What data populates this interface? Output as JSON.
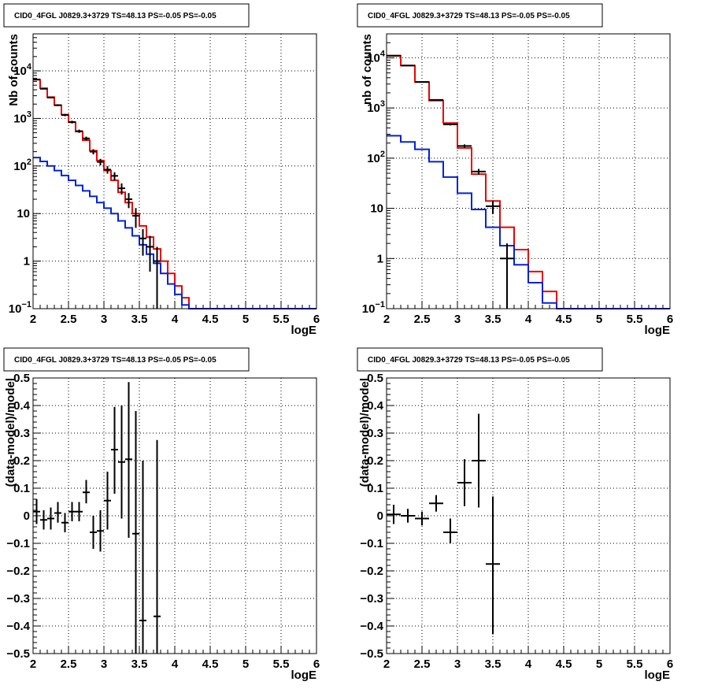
{
  "page_title": "CID0_4FGL J0829.3+3729 TS=48.13 PS=-0.05 PS=-0.05",
  "colors": {
    "data": "#000000",
    "total_model": "#ee0000",
    "component_model": "#0022dd",
    "grid": "#000000"
  },
  "chart_data": [
    {
      "panel": "top-left",
      "type": "line",
      "title": "CID0_4FGL J0829.3+3729 TS=48.13 PS=-0.05 PS=-0.05",
      "xlabel": "logE",
      "ylabel": "Nb of counts",
      "log_y": true,
      "xlim": [
        2,
        6
      ],
      "ylim": [
        0.1,
        60000
      ],
      "grid": true,
      "x_ticks": [
        "2",
        "2.5",
        "3",
        "3.5",
        "4",
        "4.5",
        "5",
        "5.5",
        "6"
      ],
      "y_ticks": [
        {
          "v": 0.1,
          "base": "10",
          "exp": "−1"
        },
        {
          "v": 1,
          "label": "1"
        },
        {
          "v": 10,
          "label": "10"
        },
        {
          "v": 100,
          "base": "10",
          "exp": "2"
        },
        {
          "v": 1000,
          "base": "10",
          "exp": "3"
        },
        {
          "v": 10000,
          "base": "10",
          "exp": "4"
        }
      ],
      "bin_edges": [
        2.0,
        2.1,
        2.2,
        2.3,
        2.4,
        2.5,
        2.6,
        2.7,
        2.8,
        2.9,
        3.0,
        3.1,
        3.2,
        3.3,
        3.4,
        3.5,
        3.6,
        3.7,
        3.8,
        3.9,
        4.0,
        4.1,
        4.2,
        4.3,
        4.4,
        4.5,
        4.6,
        4.7,
        4.8,
        4.9,
        5.0,
        5.1,
        5.2,
        5.3,
        5.4,
        5.5,
        5.6,
        5.7,
        5.8,
        5.9,
        6.0
      ],
      "series": [
        {
          "role": "total_model",
          "values": [
            6500,
            4300,
            2800,
            1900,
            1200,
            830,
            530,
            350,
            210,
            130,
            80,
            50,
            28,
            17,
            10,
            5.5,
            3.2,
            1.8,
            1.0,
            0.55,
            0.3,
            0.17,
            0.1,
            0.1,
            0.1,
            0.1,
            0.1,
            0.1,
            0.1,
            0.1,
            0.1,
            0.1,
            0.1,
            0.1,
            0.1,
            0.1,
            0.1,
            0.1,
            0.1,
            0.1
          ]
        },
        {
          "role": "component_model",
          "values": [
            150,
            125,
            100,
            80,
            63,
            50,
            39,
            30,
            23,
            17,
            13,
            10,
            7,
            5,
            3.4,
            2.2,
            1.4,
            0.9,
            0.55,
            0.33,
            0.2,
            0.12,
            0.1,
            0.1,
            0.1,
            0.1,
            0.1,
            0.1,
            0.1,
            0.1,
            0.1,
            0.1,
            0.1,
            0.1,
            0.1,
            0.1,
            0.1,
            0.1,
            0.1,
            0.1
          ]
        },
        {
          "role": "data",
          "points": [
            {
              "x": 2.05,
              "y": 6600,
              "lo": 6450,
              "hi": 6750
            },
            {
              "x": 2.15,
              "y": 4200,
              "lo": 4080,
              "hi": 4320
            },
            {
              "x": 2.25,
              "y": 2750,
              "lo": 2650,
              "hi": 2850
            },
            {
              "x": 2.35,
              "y": 1900,
              "lo": 1815,
              "hi": 1985
            },
            {
              "x": 2.45,
              "y": 1180,
              "lo": 1115,
              "hi": 1245
            },
            {
              "x": 2.55,
              "y": 840,
              "lo": 785,
              "hi": 895
            },
            {
              "x": 2.65,
              "y": 540,
              "lo": 497,
              "hi": 583
            },
            {
              "x": 2.75,
              "y": 380,
              "lo": 346,
              "hi": 414
            },
            {
              "x": 2.85,
              "y": 200,
              "lo": 175,
              "hi": 225
            },
            {
              "x": 2.95,
              "y": 122,
              "lo": 103,
              "hi": 141
            },
            {
              "x": 3.05,
              "y": 84,
              "lo": 69,
              "hi": 99
            },
            {
              "x": 3.15,
              "y": 62,
              "lo": 50,
              "hi": 74
            },
            {
              "x": 3.25,
              "y": 34,
              "lo": 25,
              "hi": 43
            },
            {
              "x": 3.35,
              "y": 20,
              "lo": 13,
              "hi": 27
            },
            {
              "x": 3.45,
              "y": 9,
              "lo": 5,
              "hi": 13
            },
            {
              "x": 3.55,
              "y": 3,
              "lo": 1.3,
              "hi": 4.7
            },
            {
              "x": 3.65,
              "y": 2,
              "lo": 0.6,
              "hi": 3.4
            },
            {
              "x": 3.75,
              "y": 1,
              "lo": 0.1,
              "hi": 2.0
            }
          ]
        }
      ]
    },
    {
      "panel": "top-right",
      "type": "line",
      "title": "CID0_4FGL J0829.3+3729 TS=48.13 PS=-0.05 PS=-0.05",
      "xlabel": "logE",
      "ylabel": "nb of counts",
      "log_y": true,
      "xlim": [
        2,
        6
      ],
      "ylim": [
        0.1,
        30000
      ],
      "grid": true,
      "x_ticks": [
        "2",
        "2.5",
        "3",
        "3.5",
        "4",
        "4.5",
        "5",
        "5.5",
        "6"
      ],
      "y_ticks": [
        {
          "v": 0.1,
          "base": "10",
          "exp": "−1"
        },
        {
          "v": 1,
          "label": "1"
        },
        {
          "v": 10,
          "label": "10"
        },
        {
          "v": 100,
          "base": "10",
          "exp": "2"
        },
        {
          "v": 1000,
          "base": "10",
          "exp": "3"
        },
        {
          "v": 10000,
          "base": "10",
          "exp": "4"
        }
      ],
      "bin_edges": [
        2.0,
        2.2,
        2.4,
        2.6,
        2.8,
        3.0,
        3.2,
        3.4,
        3.6,
        3.8,
        4.0,
        4.2,
        4.4,
        4.6,
        4.8,
        5.0,
        5.2,
        5.4,
        5.6,
        5.8,
        6.0
      ],
      "series": [
        {
          "role": "total_model",
          "values": [
            11000,
            7000,
            3300,
            1400,
            500,
            160,
            48,
            14,
            4.2,
            1.5,
            0.55,
            0.22,
            0.1,
            0.1,
            0.1,
            0.1,
            0.1,
            0.1,
            0.1,
            0.1
          ]
        },
        {
          "role": "component_model",
          "values": [
            280,
            210,
            150,
            85,
            42,
            20,
            9.5,
            4.2,
            1.8,
            0.75,
            0.33,
            0.13,
            0.1,
            0.1,
            0.1,
            0.1,
            0.1,
            0.1,
            0.1,
            0.1
          ]
        },
        {
          "role": "data",
          "points": [
            {
              "x": 2.1,
              "y": 11000,
              "lo": 10900,
              "hi": 11100
            },
            {
              "x": 2.3,
              "y": 7000,
              "lo": 6920,
              "hi": 7080
            },
            {
              "x": 2.5,
              "y": 3300,
              "lo": 3240,
              "hi": 3360
            },
            {
              "x": 2.7,
              "y": 1450,
              "lo": 1410,
              "hi": 1490
            },
            {
              "x": 2.9,
              "y": 470,
              "lo": 448,
              "hi": 492
            },
            {
              "x": 3.1,
              "y": 175,
              "lo": 162,
              "hi": 188
            },
            {
              "x": 3.3,
              "y": 54,
              "lo": 47,
              "hi": 61
            },
            {
              "x": 3.5,
              "y": 11,
              "lo": 7.7,
              "hi": 14.3
            },
            {
              "x": 3.7,
              "y": 1,
              "lo": 0.1,
              "hi": 2.0
            }
          ]
        }
      ]
    },
    {
      "panel": "bottom-left",
      "type": "scatter",
      "title": "CID0_4FGL J0829.3+3729 TS=48.13 PS=-0.05 PS=-0.05",
      "xlabel": "logE",
      "ylabel": "(data-model)/model",
      "log_y": false,
      "xlim": [
        2,
        6
      ],
      "ylim": [
        -0.5,
        0.5
      ],
      "grid": true,
      "x_ticks": [
        "2",
        "2.5",
        "3",
        "3.5",
        "4",
        "4.5",
        "5",
        "5.5",
        "6"
      ],
      "y_ticks": [
        {
          "v": -0.5,
          "label": "−0.5"
        },
        {
          "v": -0.4,
          "label": "−0.4"
        },
        {
          "v": -0.3,
          "label": "−0.3"
        },
        {
          "v": -0.2,
          "label": "−0.2"
        },
        {
          "v": -0.1,
          "label": "−0.1"
        },
        {
          "v": 0,
          "label": "0"
        },
        {
          "v": 0.1,
          "label": "0.1"
        },
        {
          "v": 0.2,
          "label": "0.2"
        },
        {
          "v": 0.3,
          "label": "0.3"
        },
        {
          "v": 0.4,
          "label": "0.4"
        },
        {
          "v": 0.5,
          "label": "0.5"
        }
      ],
      "series": [
        {
          "role": "data",
          "xerr": 0.05,
          "points": [
            {
              "x": 2.05,
              "y": 0.015,
              "lo": -0.03,
              "hi": 0.06
            },
            {
              "x": 2.15,
              "y": -0.015,
              "lo": -0.05,
              "hi": 0.02
            },
            {
              "x": 2.25,
              "y": -0.01,
              "lo": -0.05,
              "hi": 0.03
            },
            {
              "x": 2.35,
              "y": 0.01,
              "lo": -0.025,
              "hi": 0.05
            },
            {
              "x": 2.45,
              "y": -0.025,
              "lo": -0.06,
              "hi": 0.01
            },
            {
              "x": 2.55,
              "y": 0.015,
              "lo": -0.02,
              "hi": 0.05
            },
            {
              "x": 2.65,
              "y": 0.015,
              "lo": -0.02,
              "hi": 0.05
            },
            {
              "x": 2.75,
              "y": 0.085,
              "lo": 0.045,
              "hi": 0.13
            },
            {
              "x": 2.85,
              "y": -0.06,
              "lo": -0.12,
              "hi": 0.0
            },
            {
              "x": 2.95,
              "y": -0.055,
              "lo": -0.13,
              "hi": 0.02
            },
            {
              "x": 3.05,
              "y": 0.055,
              "lo": -0.05,
              "hi": 0.16
            },
            {
              "x": 3.15,
              "y": 0.24,
              "lo": 0.08,
              "hi": 0.395
            },
            {
              "x": 3.25,
              "y": 0.195,
              "lo": -0.01,
              "hi": 0.4
            },
            {
              "x": 3.35,
              "y": 0.205,
              "lo": -0.08,
              "hi": 0.485
            },
            {
              "x": 3.45,
              "y": -0.065,
              "lo": -0.5,
              "hi": 0.38
            },
            {
              "x": 3.55,
              "y": -0.38,
              "lo": -0.5,
              "hi": 0.2
            },
            {
              "x": 3.75,
              "y": -0.365,
              "lo": -0.5,
              "hi": 0.275
            }
          ]
        }
      ]
    },
    {
      "panel": "bottom-right",
      "type": "scatter",
      "title": "CID0_4FGL J0829.3+3729 TS=48.13 PS=-0.05 PS=-0.05",
      "xlabel": "logE",
      "ylabel": "(data-model)/model",
      "log_y": false,
      "xlim": [
        2,
        6
      ],
      "ylim": [
        -0.5,
        0.5
      ],
      "grid": true,
      "x_ticks": [
        "2",
        "2.5",
        "3",
        "3.5",
        "4",
        "4.5",
        "5",
        "5.5",
        "6"
      ],
      "y_ticks": [
        {
          "v": -0.5,
          "label": "−0.5"
        },
        {
          "v": -0.4,
          "label": "−0.4"
        },
        {
          "v": -0.3,
          "label": "−0.3"
        },
        {
          "v": -0.2,
          "label": "−0.2"
        },
        {
          "v": -0.1,
          "label": "−0.1"
        },
        {
          "v": 0,
          "label": "0"
        },
        {
          "v": 0.1,
          "label": "0.1"
        },
        {
          "v": 0.2,
          "label": "0.2"
        },
        {
          "v": 0.3,
          "label": "0.3"
        },
        {
          "v": 0.4,
          "label": "0.4"
        },
        {
          "v": 0.5,
          "label": "0.5"
        }
      ],
      "series": [
        {
          "role": "data",
          "xerr": 0.1,
          "points": [
            {
              "x": 2.1,
              "y": 0.005,
              "lo": -0.03,
              "hi": 0.04
            },
            {
              "x": 2.3,
              "y": 0.0,
              "lo": -0.025,
              "hi": 0.025
            },
            {
              "x": 2.5,
              "y": -0.01,
              "lo": -0.035,
              "hi": 0.015
            },
            {
              "x": 2.7,
              "y": 0.045,
              "lo": 0.015,
              "hi": 0.075
            },
            {
              "x": 2.9,
              "y": -0.06,
              "lo": -0.1,
              "hi": -0.01
            },
            {
              "x": 3.1,
              "y": 0.12,
              "lo": 0.035,
              "hi": 0.205
            },
            {
              "x": 3.3,
              "y": 0.2,
              "lo": 0.03,
              "hi": 0.37
            },
            {
              "x": 3.5,
              "y": -0.175,
              "lo": -0.43,
              "hi": 0.07
            }
          ]
        }
      ]
    }
  ]
}
